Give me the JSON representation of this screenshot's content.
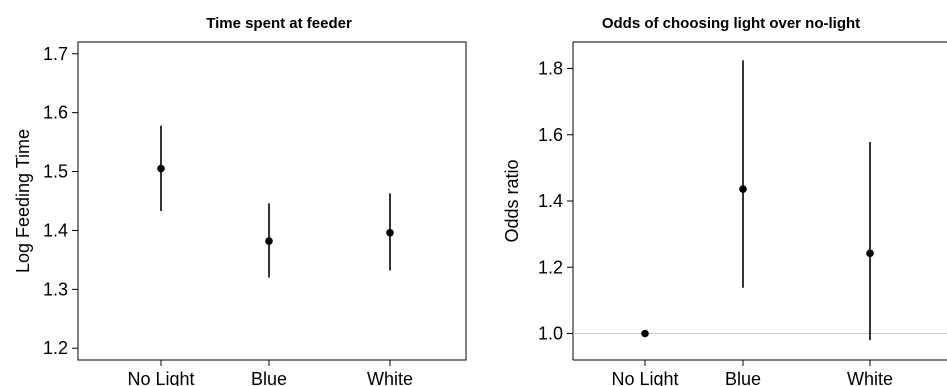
{
  "chart_data": [
    {
      "type": "scatter",
      "title": "Time spent at feeder",
      "xlabel": "",
      "ylabel": "Log Feeding Time",
      "categories": [
        "No Light",
        "Blue",
        "White"
      ],
      "values": [
        1.505,
        1.382,
        1.396
      ],
      "lower": [
        1.433,
        1.32,
        1.332
      ],
      "upper": [
        1.578,
        1.446,
        1.463
      ],
      "ylim": [
        1.18,
        1.72
      ],
      "yticks": [
        "1.2",
        "1.3",
        "1.4",
        "1.5",
        "1.6",
        "1.7"
      ],
      "reference_line": null,
      "grid": false
    },
    {
      "type": "scatter",
      "title": "Odds of choosing light over no-light",
      "xlabel": "",
      "ylabel": "Odds ratio",
      "categories": [
        "No Light",
        "Blue",
        "White"
      ],
      "values": [
        1.0,
        1.436,
        1.242
      ],
      "lower": [
        1.0,
        1.138,
        0.98
      ],
      "upper": [
        1.0,
        1.825,
        1.578
      ],
      "ylim": [
        0.92,
        1.88
      ],
      "yticks": [
        "1.0",
        "1.2",
        "1.4",
        "1.6",
        "1.8"
      ],
      "reference_line": 1.0,
      "grid": false
    }
  ],
  "colors": {
    "point": "#000000",
    "errorbar": "#000000",
    "reference_line": "#cccccc",
    "frame": "#000000"
  }
}
